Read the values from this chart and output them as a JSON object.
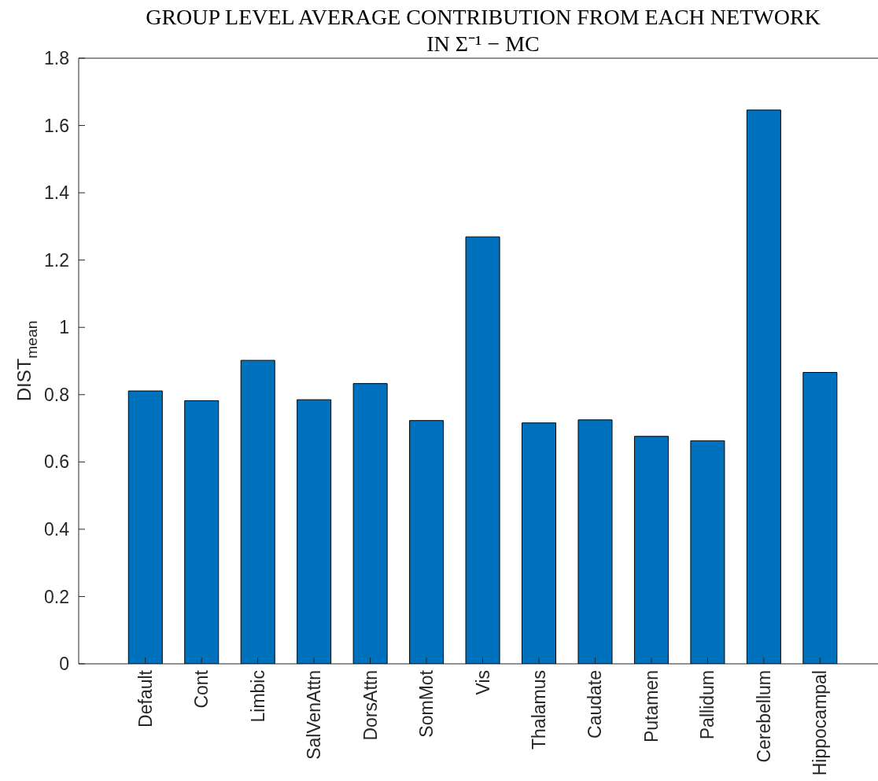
{
  "chart_data": {
    "type": "bar",
    "title": "GROUP LEVEL AVERAGE CONTRIBUTION FROM EACH NETWORK\nIN Σ⁻¹ − MC",
    "ylabel": "DIST$_{mean}$",
    "categories": [
      "Default",
      "Cont",
      "Limbic",
      "SalVenAttn",
      "DorsAttn",
      "SomMot",
      "Vis",
      "Thalamus",
      "Caudate",
      "Putamen",
      "Pallidum",
      "Cerebellum",
      "Hippocampal"
    ],
    "values": [
      0.811,
      0.782,
      0.902,
      0.785,
      0.833,
      0.723,
      1.269,
      0.716,
      0.725,
      0.676,
      0.663,
      1.646,
      0.866
    ],
    "color": "#0072bd",
    "ylim": [
      0,
      1.8
    ],
    "yticks": [
      0,
      0.2,
      0.4,
      0.6,
      0.8,
      1,
      1.2,
      1.4,
      1.6,
      1.8
    ]
  }
}
